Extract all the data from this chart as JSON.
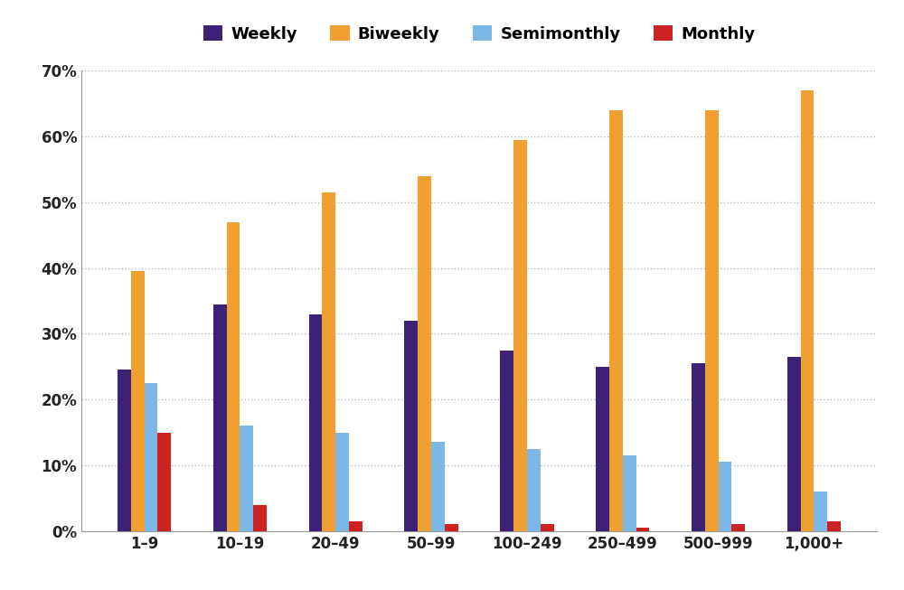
{
  "categories": [
    "1–9",
    "10–19",
    "20–49",
    "50–99",
    "100–249",
    "250–499",
    "500–999",
    "1,000+"
  ],
  "series": {
    "Weekly": [
      24.5,
      34.5,
      33.0,
      32.0,
      27.5,
      25.0,
      25.5,
      26.5
    ],
    "Biweekly": [
      39.5,
      47.0,
      51.5,
      54.0,
      59.5,
      64.0,
      64.0,
      67.0
    ],
    "Semimonthly": [
      22.5,
      16.0,
      15.0,
      13.5,
      12.5,
      11.5,
      10.5,
      6.0
    ],
    "Monthly": [
      15.0,
      4.0,
      1.5,
      1.0,
      1.0,
      0.5,
      1.0,
      1.5
    ]
  },
  "colors": {
    "Weekly": "#3D2176",
    "Biweekly": "#F0A030",
    "Semimonthly": "#7BB8E8",
    "Monthly": "#CC2222"
  },
  "legend_order": [
    "Weekly",
    "Biweekly",
    "Semimonthly",
    "Monthly"
  ],
  "ylim": [
    0,
    70
  ],
  "yticks": [
    0,
    10,
    20,
    30,
    40,
    50,
    60,
    70
  ],
  "ytick_labels": [
    "0%",
    "10%",
    "20%",
    "30%",
    "40%",
    "50%",
    "60%",
    "70%"
  ],
  "background_color": "#FFFFFF",
  "grid_color": "#AABBCC",
  "bar_width": 0.14,
  "figsize": [
    10.0,
    6.53
  ],
  "dpi": 100
}
